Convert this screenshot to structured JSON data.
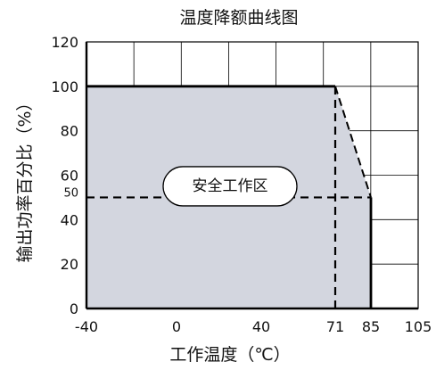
{
  "chart_data": {
    "type": "area",
    "title": "温度降额曲线图",
    "xlabel": "工作温度（℃）",
    "ylabel": "输出功率百分比（%）",
    "x_ticks": [
      {
        "value": -40,
        "label": "-40"
      },
      {
        "value": 0,
        "label": "0"
      },
      {
        "value": 40,
        "label": "40"
      },
      {
        "value": 71,
        "label": "71"
      },
      {
        "value": 85,
        "label": "85"
      },
      {
        "value": 105,
        "label": "105"
      }
    ],
    "y_ticks": [
      {
        "value": 0,
        "label": "0"
      },
      {
        "value": 20,
        "label": "20"
      },
      {
        "value": 40,
        "label": "40"
      },
      {
        "value": 50,
        "label": "50"
      },
      {
        "value": 60,
        "label": "60"
      },
      {
        "value": 80,
        "label": "80"
      },
      {
        "value": 100,
        "label": "100"
      },
      {
        "value": 120,
        "label": "120"
      }
    ],
    "xlim": [
      -40,
      105
    ],
    "ylim": [
      0,
      120
    ],
    "grid": true,
    "series": [
      {
        "x": [
          -40,
          71,
          85,
          85
        ],
        "y": [
          100,
          100,
          50,
          0
        ]
      }
    ],
    "guides": [
      {
        "type": "vertical",
        "x": 71,
        "y_from": 0,
        "y_to": 100
      },
      {
        "type": "horizontal",
        "y": 50,
        "x_from": -40,
        "x_to": 85
      }
    ],
    "annotation": {
      "text": "安全工作区",
      "x": 40,
      "y": 55
    },
    "colors": {
      "fill": "#d3d6df",
      "line": "#000000",
      "grid": "#000000"
    }
  }
}
